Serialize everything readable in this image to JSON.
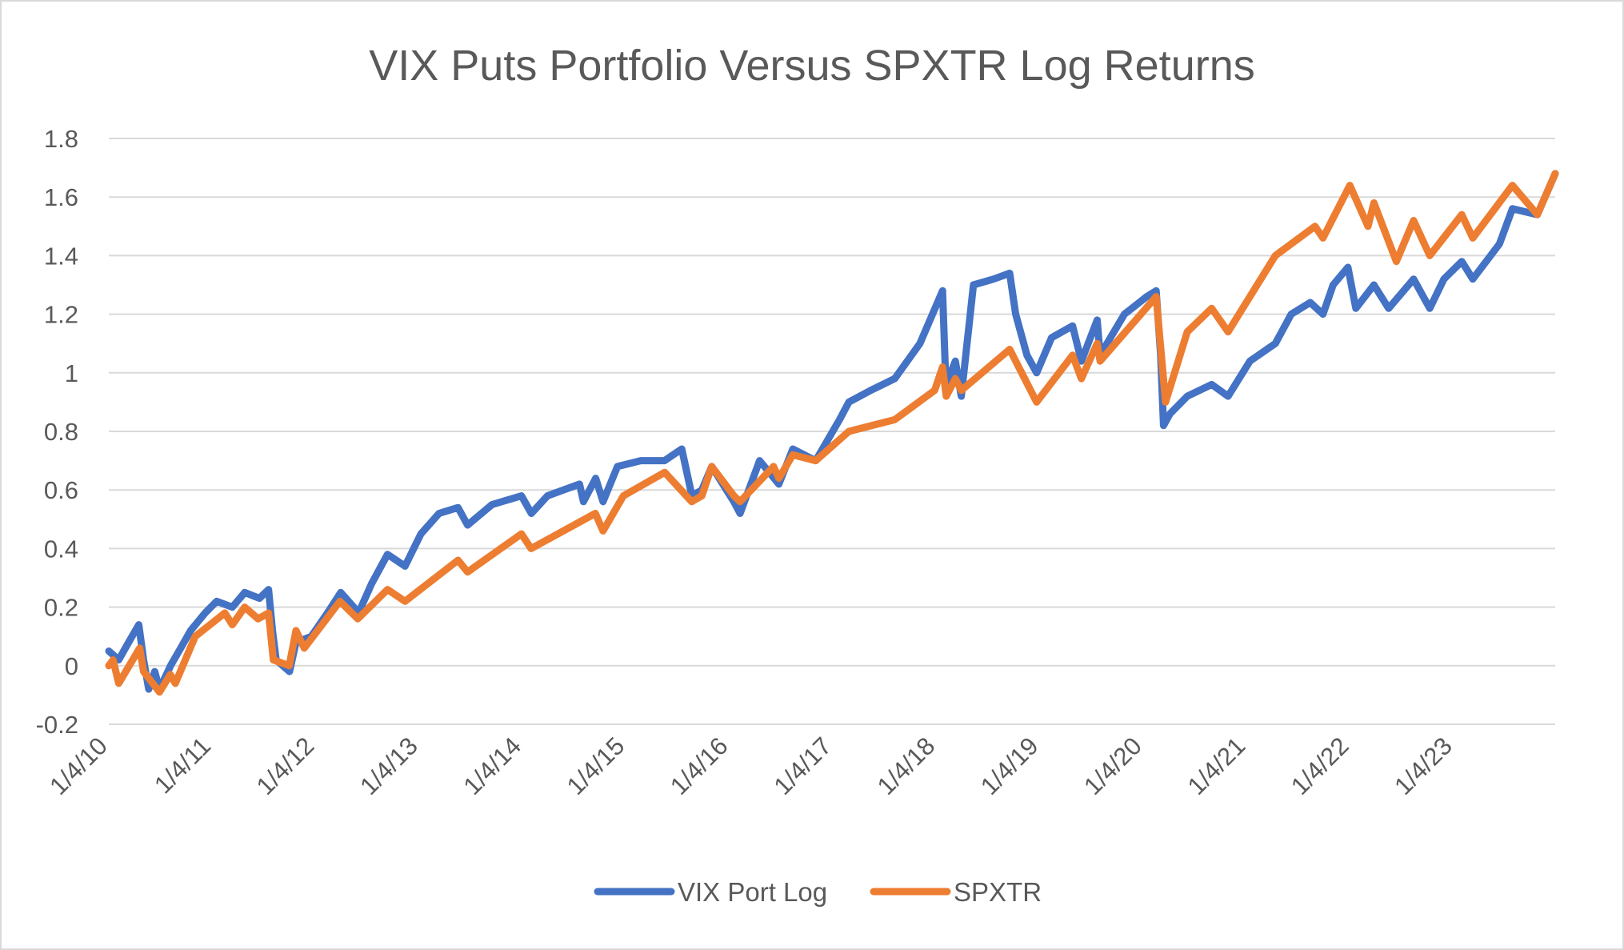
{
  "chart_data": {
    "type": "line",
    "title": "VIX Puts Portfolio Versus SPXTR Log Returns",
    "xlabel": "",
    "ylabel": "",
    "x_tick_labels": [
      "1/4/10",
      "1/4/11",
      "1/4/12",
      "1/4/13",
      "1/4/14",
      "1/4/15",
      "1/4/16",
      "1/4/17",
      "1/4/18",
      "1/4/19",
      "1/4/20",
      "1/4/21",
      "1/4/22",
      "1/4/23"
    ],
    "y_tick_labels": [
      "-0.2",
      "0",
      "0.2",
      "0.4",
      "0.6",
      "0.8",
      "1",
      "1.2",
      "1.4",
      "1.6",
      "1.8"
    ],
    "ylim": [
      -0.2,
      1.8
    ],
    "xlim": [
      "2010-01-04",
      "2023-12-29"
    ],
    "grid": true,
    "legend_position": "bottom",
    "series": [
      {
        "name": "VIX Port Log",
        "color": "#4472c4",
        "points": [
          [
            "2010-01-04",
            0.05
          ],
          [
            "2010-02-08",
            0.02
          ],
          [
            "2010-03-15",
            0.08
          ],
          [
            "2010-04-20",
            0.14
          ],
          [
            "2010-05-07",
            0.02
          ],
          [
            "2010-05-25",
            -0.08
          ],
          [
            "2010-06-15",
            -0.02
          ],
          [
            "2010-07-02",
            -0.08
          ],
          [
            "2010-08-10",
            0.0
          ],
          [
            "2010-09-15",
            0.06
          ],
          [
            "2010-10-20",
            0.12
          ],
          [
            "2010-12-10",
            0.18
          ],
          [
            "2011-01-20",
            0.22
          ],
          [
            "2011-03-16",
            0.2
          ],
          [
            "2011-04-29",
            0.25
          ],
          [
            "2011-06-20",
            0.23
          ],
          [
            "2011-07-22",
            0.26
          ],
          [
            "2011-08-05",
            0.12
          ],
          [
            "2011-08-18",
            0.02
          ],
          [
            "2011-10-04",
            -0.02
          ],
          [
            "2011-10-27",
            0.08
          ],
          [
            "2011-12-20",
            0.1
          ],
          [
            "2012-02-15",
            0.18
          ],
          [
            "2012-04-02",
            0.25
          ],
          [
            "2012-05-18",
            0.2
          ],
          [
            "2012-06-04",
            0.18
          ],
          [
            "2012-07-20",
            0.28
          ],
          [
            "2012-09-14",
            0.38
          ],
          [
            "2012-11-15",
            0.34
          ],
          [
            "2013-01-10",
            0.45
          ],
          [
            "2013-03-15",
            0.52
          ],
          [
            "2013-05-21",
            0.54
          ],
          [
            "2013-06-24",
            0.48
          ],
          [
            "2013-09-18",
            0.55
          ],
          [
            "2013-12-31",
            0.58
          ],
          [
            "2014-02-04",
            0.52
          ],
          [
            "2014-04-02",
            0.58
          ],
          [
            "2014-07-24",
            0.62
          ],
          [
            "2014-08-07",
            0.56
          ],
          [
            "2014-09-19",
            0.64
          ],
          [
            "2014-10-15",
            0.56
          ],
          [
            "2014-12-05",
            0.68
          ],
          [
            "2015-02-25",
            0.7
          ],
          [
            "2015-05-20",
            0.7
          ],
          [
            "2015-07-20",
            0.74
          ],
          [
            "2015-08-25",
            0.58
          ],
          [
            "2015-09-29",
            0.6
          ],
          [
            "2015-11-03",
            0.68
          ],
          [
            "2016-01-20",
            0.56
          ],
          [
            "2016-02-11",
            0.52
          ],
          [
            "2016-04-20",
            0.7
          ],
          [
            "2016-06-27",
            0.62
          ],
          [
            "2016-08-15",
            0.74
          ],
          [
            "2016-11-04",
            0.7
          ],
          [
            "2017-01-27",
            0.84
          ],
          [
            "2017-03-01",
            0.9
          ],
          [
            "2017-05-17",
            0.94
          ],
          [
            "2017-08-10",
            0.98
          ],
          [
            "2017-11-07",
            1.1
          ],
          [
            "2018-01-26",
            1.28
          ],
          [
            "2018-02-05",
            1.0
          ],
          [
            "2018-02-08",
            0.96
          ],
          [
            "2018-03-12",
            1.04
          ],
          [
            "2018-04-02",
            0.92
          ],
          [
            "2018-05-15",
            1.3
          ],
          [
            "2018-07-25",
            1.32
          ],
          [
            "2018-09-20",
            1.34
          ],
          [
            "2018-10-11",
            1.2
          ],
          [
            "2018-11-20",
            1.06
          ],
          [
            "2018-12-24",
            1.0
          ],
          [
            "2019-02-15",
            1.12
          ],
          [
            "2019-04-30",
            1.16
          ],
          [
            "2019-05-31",
            1.04
          ],
          [
            "2019-07-26",
            1.18
          ],
          [
            "2019-08-05",
            1.06
          ],
          [
            "2019-10-30",
            1.2
          ],
          [
            "2020-01-17",
            1.26
          ],
          [
            "2020-02-19",
            1.28
          ],
          [
            "2020-03-06",
            1.06
          ],
          [
            "2020-03-16",
            0.82
          ],
          [
            "2020-04-08",
            0.86
          ],
          [
            "2020-06-08",
            0.92
          ],
          [
            "2020-09-02",
            0.96
          ],
          [
            "2020-10-30",
            0.92
          ],
          [
            "2021-01-15",
            1.04
          ],
          [
            "2021-04-15",
            1.1
          ],
          [
            "2021-06-10",
            1.2
          ],
          [
            "2021-08-16",
            1.24
          ],
          [
            "2021-09-30",
            1.2
          ],
          [
            "2021-11-05",
            1.3
          ],
          [
            "2021-12-27",
            1.36
          ],
          [
            "2022-01-24",
            1.22
          ],
          [
            "2022-03-29",
            1.3
          ],
          [
            "2022-05-20",
            1.22
          ],
          [
            "2022-08-16",
            1.32
          ],
          [
            "2022-10-12",
            1.22
          ],
          [
            "2022-12-01",
            1.32
          ],
          [
            "2023-02-02",
            1.38
          ],
          [
            "2023-03-13",
            1.32
          ],
          [
            "2023-06-15",
            1.44
          ],
          [
            "2023-07-31",
            1.56
          ],
          [
            "2023-10-27",
            1.54
          ],
          [
            "2023-12-29",
            1.68
          ]
        ]
      },
      {
        "name": "SPXTR",
        "color": "#ed7d31",
        "points": [
          [
            "2010-01-04",
            0.0
          ],
          [
            "2010-01-19",
            0.02
          ],
          [
            "2010-02-08",
            -0.06
          ],
          [
            "2010-04-23",
            0.06
          ],
          [
            "2010-05-07",
            -0.02
          ],
          [
            "2010-07-02",
            -0.09
          ],
          [
            "2010-08-09",
            -0.03
          ],
          [
            "2010-08-27",
            -0.06
          ],
          [
            "2010-11-05",
            0.1
          ],
          [
            "2011-02-18",
            0.18
          ],
          [
            "2011-03-16",
            0.14
          ],
          [
            "2011-04-29",
            0.2
          ],
          [
            "2011-06-15",
            0.16
          ],
          [
            "2011-07-22",
            0.18
          ],
          [
            "2011-08-08",
            0.02
          ],
          [
            "2011-10-03",
            0.0
          ],
          [
            "2011-10-27",
            0.12
          ],
          [
            "2011-11-25",
            0.06
          ],
          [
            "2012-03-30",
            0.22
          ],
          [
            "2012-06-01",
            0.16
          ],
          [
            "2012-09-14",
            0.26
          ],
          [
            "2012-11-15",
            0.22
          ],
          [
            "2013-05-21",
            0.36
          ],
          [
            "2013-06-24",
            0.32
          ],
          [
            "2013-12-31",
            0.45
          ],
          [
            "2014-02-03",
            0.4
          ],
          [
            "2014-09-18",
            0.52
          ],
          [
            "2014-10-15",
            0.46
          ],
          [
            "2014-12-26",
            0.58
          ],
          [
            "2015-05-21",
            0.66
          ],
          [
            "2015-08-24",
            0.56
          ],
          [
            "2015-09-29",
            0.58
          ],
          [
            "2015-11-03",
            0.68
          ],
          [
            "2016-01-20",
            0.58
          ],
          [
            "2016-02-11",
            0.56
          ],
          [
            "2016-06-08",
            0.68
          ],
          [
            "2016-06-27",
            0.64
          ],
          [
            "2016-08-15",
            0.72
          ],
          [
            "2016-11-04",
            0.7
          ],
          [
            "2017-03-01",
            0.8
          ],
          [
            "2017-08-10",
            0.84
          ],
          [
            "2017-12-29",
            0.94
          ],
          [
            "2018-01-26",
            1.02
          ],
          [
            "2018-02-08",
            0.92
          ],
          [
            "2018-03-12",
            0.98
          ],
          [
            "2018-04-02",
            0.94
          ],
          [
            "2018-09-20",
            1.08
          ],
          [
            "2018-12-24",
            0.9
          ],
          [
            "2019-04-30",
            1.06
          ],
          [
            "2019-05-31",
            0.98
          ],
          [
            "2019-07-26",
            1.1
          ],
          [
            "2019-08-05",
            1.04
          ],
          [
            "2020-02-19",
            1.26
          ],
          [
            "2020-03-23",
            0.9
          ],
          [
            "2020-06-08",
            1.14
          ],
          [
            "2020-09-02",
            1.22
          ],
          [
            "2020-10-30",
            1.14
          ],
          [
            "2021-04-15",
            1.4
          ],
          [
            "2021-09-02",
            1.5
          ],
          [
            "2021-09-30",
            1.46
          ],
          [
            "2022-01-03",
            1.64
          ],
          [
            "2022-03-08",
            1.5
          ],
          [
            "2022-03-29",
            1.58
          ],
          [
            "2022-06-16",
            1.38
          ],
          [
            "2022-08-16",
            1.52
          ],
          [
            "2022-10-12",
            1.4
          ],
          [
            "2023-02-02",
            1.54
          ],
          [
            "2023-03-13",
            1.46
          ],
          [
            "2023-07-31",
            1.64
          ],
          [
            "2023-10-27",
            1.54
          ],
          [
            "2023-12-29",
            1.68
          ]
        ]
      }
    ]
  }
}
